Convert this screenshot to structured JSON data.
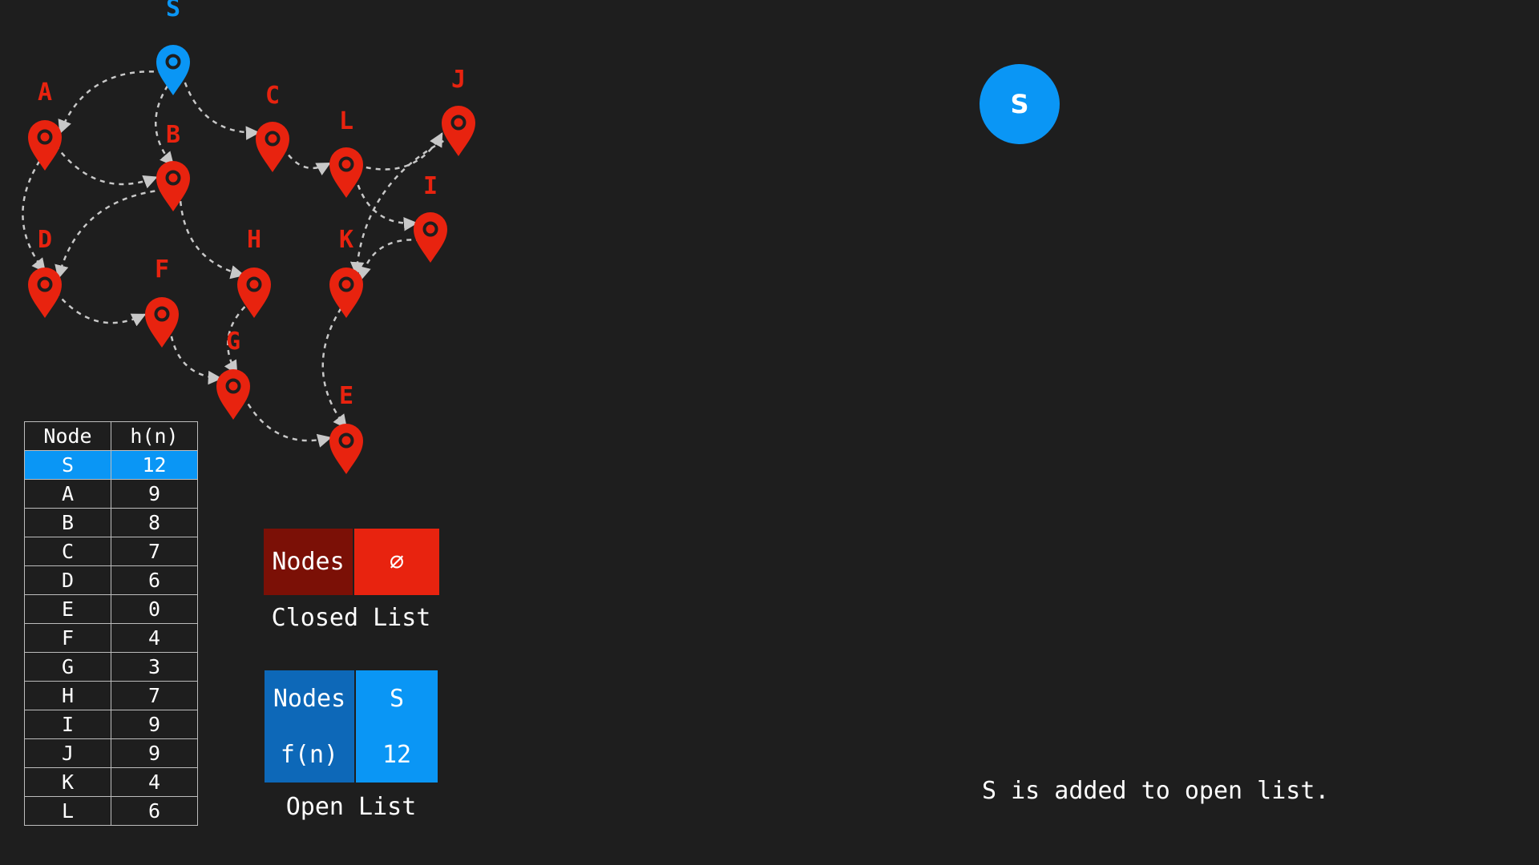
{
  "graph": {
    "nodes": [
      {
        "id": "S",
        "active": true
      },
      {
        "id": "A"
      },
      {
        "id": "B"
      },
      {
        "id": "C"
      },
      {
        "id": "L"
      },
      {
        "id": "J"
      },
      {
        "id": "I"
      },
      {
        "id": "D"
      },
      {
        "id": "F"
      },
      {
        "id": "H"
      },
      {
        "id": "K"
      },
      {
        "id": "G"
      },
      {
        "id": "E"
      }
    ],
    "edges": [
      [
        "S",
        "A"
      ],
      [
        "S",
        "B"
      ],
      [
        "S",
        "C"
      ],
      [
        "A",
        "B"
      ],
      [
        "A",
        "D"
      ],
      [
        "B",
        "D"
      ],
      [
        "B",
        "H"
      ],
      [
        "C",
        "L"
      ],
      [
        "L",
        "J"
      ],
      [
        "L",
        "I"
      ],
      [
        "J",
        "K"
      ],
      [
        "I",
        "K"
      ],
      [
        "D",
        "F"
      ],
      [
        "F",
        "G"
      ],
      [
        "H",
        "G"
      ],
      [
        "G",
        "E"
      ],
      [
        "K",
        "E"
      ]
    ]
  },
  "heuristic_table": {
    "headers": [
      "Node",
      "h(n)"
    ],
    "rows": [
      [
        "S",
        "12"
      ],
      [
        "A",
        "9"
      ],
      [
        "B",
        "8"
      ],
      [
        "C",
        "7"
      ],
      [
        "D",
        "6"
      ],
      [
        "E",
        "0"
      ],
      [
        "F",
        "4"
      ],
      [
        "G",
        "3"
      ],
      [
        "H",
        "7"
      ],
      [
        "I",
        "9"
      ],
      [
        "J",
        "9"
      ],
      [
        "K",
        "4"
      ],
      [
        "L",
        "6"
      ]
    ],
    "highlight": "S"
  },
  "closed_list": {
    "key": "Nodes",
    "value": "⌀",
    "caption": "Closed List"
  },
  "open_list": {
    "key1": "Nodes",
    "val1": "S",
    "key2": "f(n)",
    "val2": "12",
    "caption": "Open List"
  },
  "current_node": "S",
  "status": "S is added to open list.",
  "colors": {
    "background": "#1e1e1e",
    "active": "#0a96f5",
    "node": "#e8230f",
    "edge": "#c8c8c8"
  }
}
